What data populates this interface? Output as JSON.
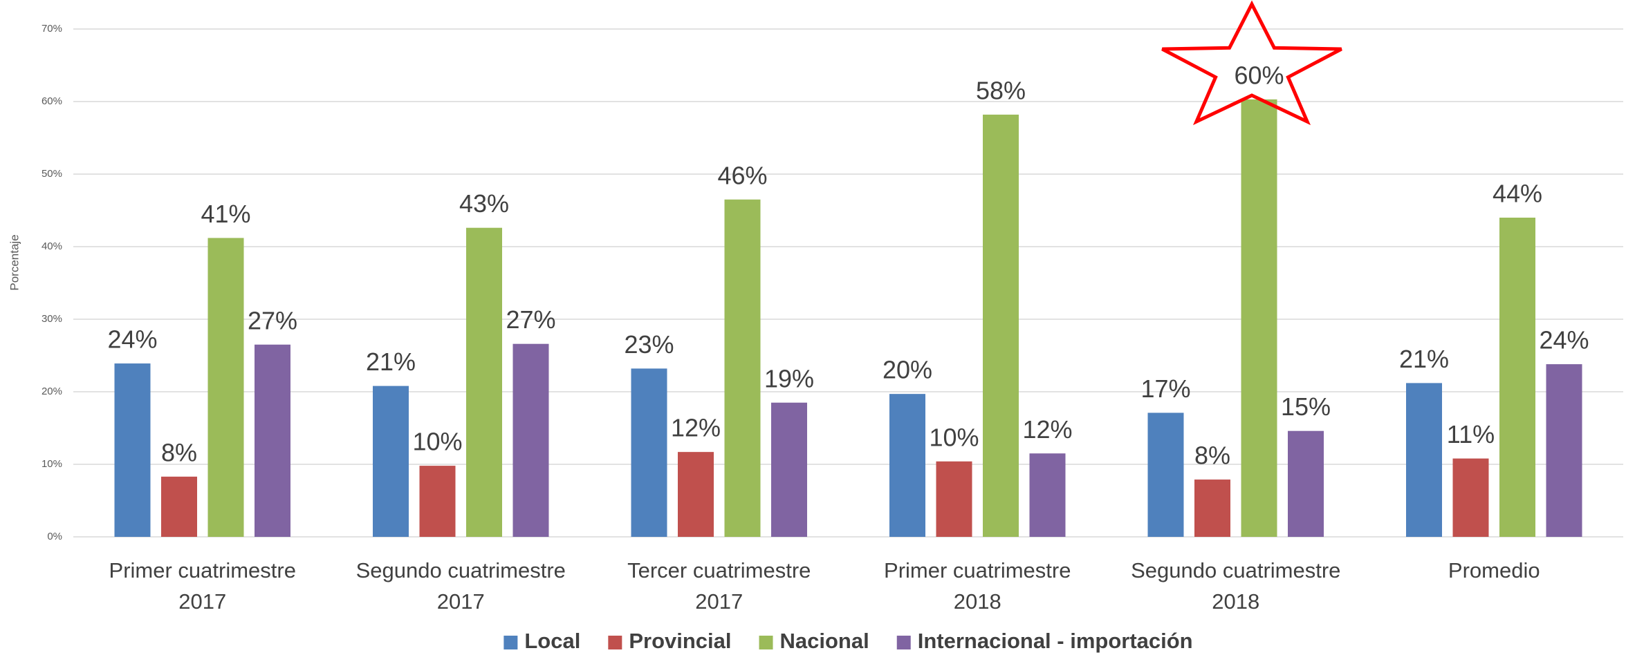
{
  "chart_data": {
    "type": "bar",
    "y_label": "Porcentaje",
    "categories": [
      "Primer cuatrimestre 2017",
      "Segundo cuatrimestre 2017",
      "Tercer cuatrimestre 2017",
      "Primer cuatrimestre 2018",
      "Segundo cuatrimestre 2018",
      "Promedio"
    ],
    "series": [
      {
        "name": "Local",
        "color": "#4f81bd",
        "values": [
          23.9,
          20.8,
          23.2,
          19.7,
          17.1,
          21.2
        ],
        "value_labels": [
          "24%",
          "21%",
          "23%",
          "20%",
          "17%",
          "21%"
        ]
      },
      {
        "name": "Provincial",
        "color": "#c0504d",
        "values": [
          8.3,
          9.8,
          11.7,
          10.4,
          7.9,
          10.8
        ],
        "value_labels": [
          "8%",
          "10%",
          "12%",
          "10%",
          "8%",
          "11%"
        ]
      },
      {
        "name": "Nacional",
        "color": "#9bbb59",
        "values": [
          41.2,
          42.6,
          46.5,
          58.2,
          60.3,
          44.0
        ],
        "value_labels": [
          "41%",
          "43%",
          "46%",
          "58%",
          "60%",
          "44%"
        ]
      },
      {
        "name": "Internacional - importación",
        "color": "#8064a2",
        "values": [
          26.5,
          26.6,
          18.5,
          11.5,
          14.6,
          23.8
        ],
        "value_labels": [
          "27%",
          "27%",
          "19%",
          "12%",
          "15%",
          "24%"
        ]
      }
    ],
    "ylim": [
      0,
      70
    ],
    "yticks": [
      {
        "value": 0,
        "label": "0%"
      },
      {
        "value": 10,
        "label": "10%"
      },
      {
        "value": 20,
        "label": "20%"
      },
      {
        "value": 30,
        "label": "30%"
      },
      {
        "value": 40,
        "label": "40%"
      },
      {
        "value": 50,
        "label": "50%"
      },
      {
        "value": 60,
        "label": "60%"
      },
      {
        "value": 70,
        "label": "70%"
      }
    ],
    "grid": true,
    "legend": "bottom"
  }
}
